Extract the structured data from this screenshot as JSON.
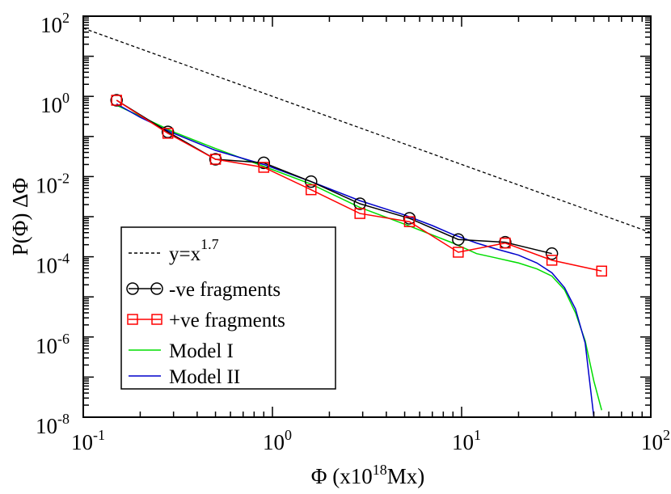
{
  "chart_data": {
    "type": "line",
    "xscale": "log",
    "yscale": "log",
    "xlim": [
      0.1,
      100
    ],
    "ylim": [
      1e-08,
      100
    ],
    "xlabel": {
      "prefix": "Φ (x10",
      "sup": "18",
      "suffix": "Mx)"
    },
    "ylabel": "P(Φ)  ΔΦ",
    "x_ticks": [
      {
        "value": 0.1,
        "base": "10",
        "exp": "-1"
      },
      {
        "value": 1,
        "base": "10",
        "exp": "0"
      },
      {
        "value": 10,
        "base": "10",
        "exp": "1"
      },
      {
        "value": 100,
        "base": "10",
        "exp": "2"
      }
    ],
    "y_ticks": [
      {
        "value": 1e-08,
        "base": "10",
        "exp": "-8"
      },
      {
        "value": 1e-06,
        "base": "10",
        "exp": "-6"
      },
      {
        "value": 0.0001,
        "base": "10",
        "exp": "-4"
      },
      {
        "value": 0.01,
        "base": "10",
        "exp": "-2"
      },
      {
        "value": 1,
        "base": "10",
        "exp": "0"
      },
      {
        "value": 100,
        "base": "10",
        "exp": "2"
      }
    ],
    "legend_position": "lower-left",
    "series": [
      {
        "name": "y=x^1.7",
        "label_main": "y=x",
        "label_sup": "1.7",
        "style": "dashed",
        "color": "#000000",
        "marker": "none",
        "x": [
          0.1,
          100
        ],
        "y": [
          50.1,
          0.000401
        ]
      },
      {
        "name": "-ve fragments",
        "label_main": "-ve fragments",
        "style": "solid",
        "color": "#000000",
        "marker": "circle",
        "x": [
          0.15,
          0.28,
          0.5,
          0.9,
          1.6,
          2.9,
          5.3,
          9.6,
          17,
          30
        ],
        "y": [
          0.8,
          0.13,
          0.027,
          0.022,
          0.0075,
          0.0021,
          0.00091,
          0.00027,
          0.00023,
          0.00012
        ]
      },
      {
        "name": "+ve fragments",
        "label_main": "+ve fragments",
        "style": "solid",
        "color": "#ff0000",
        "marker": "square",
        "x": [
          0.15,
          0.28,
          0.5,
          0.9,
          1.6,
          2.9,
          5.3,
          9.6,
          17,
          30,
          55
        ],
        "y": [
          0.8,
          0.12,
          0.027,
          0.017,
          0.0047,
          0.0012,
          0.00075,
          0.00013,
          0.00022,
          8.2e-05,
          4.4e-05
        ]
      },
      {
        "name": "Model I",
        "label_main": "Model I",
        "style": "solid",
        "color": "#00dd00",
        "marker": "none",
        "x": [
          0.15,
          0.2,
          0.3,
          0.5,
          0.9,
          1.6,
          2.9,
          5,
          9,
          12,
          15,
          20,
          25,
          30,
          35,
          40,
          45,
          50,
          55
        ],
        "y": [
          0.6,
          0.32,
          0.13,
          0.05,
          0.018,
          0.0065,
          0.0017,
          0.00065,
          0.00022,
          0.00012,
          9.5e-05,
          7e-05,
          5e-05,
          3.3e-05,
          1.5e-05,
          4e-06,
          8e-07,
          8e-08,
          1.5e-08
        ]
      },
      {
        "name": "Model II",
        "label_main": "Model II",
        "style": "solid",
        "color": "#0000cc",
        "marker": "none",
        "x": [
          0.15,
          0.2,
          0.3,
          0.5,
          0.9,
          1.6,
          2.9,
          5,
          7,
          9,
          12,
          15,
          20,
          25,
          30,
          35,
          40,
          45,
          50
        ],
        "y": [
          0.65,
          0.3,
          0.12,
          0.045,
          0.02,
          0.0075,
          0.0025,
          0.0011,
          0.0006,
          0.00036,
          0.00022,
          0.00016,
          0.00011,
          7e-05,
          4e-05,
          1.7e-05,
          5e-06,
          7e-07,
          1e-08
        ]
      }
    ]
  }
}
